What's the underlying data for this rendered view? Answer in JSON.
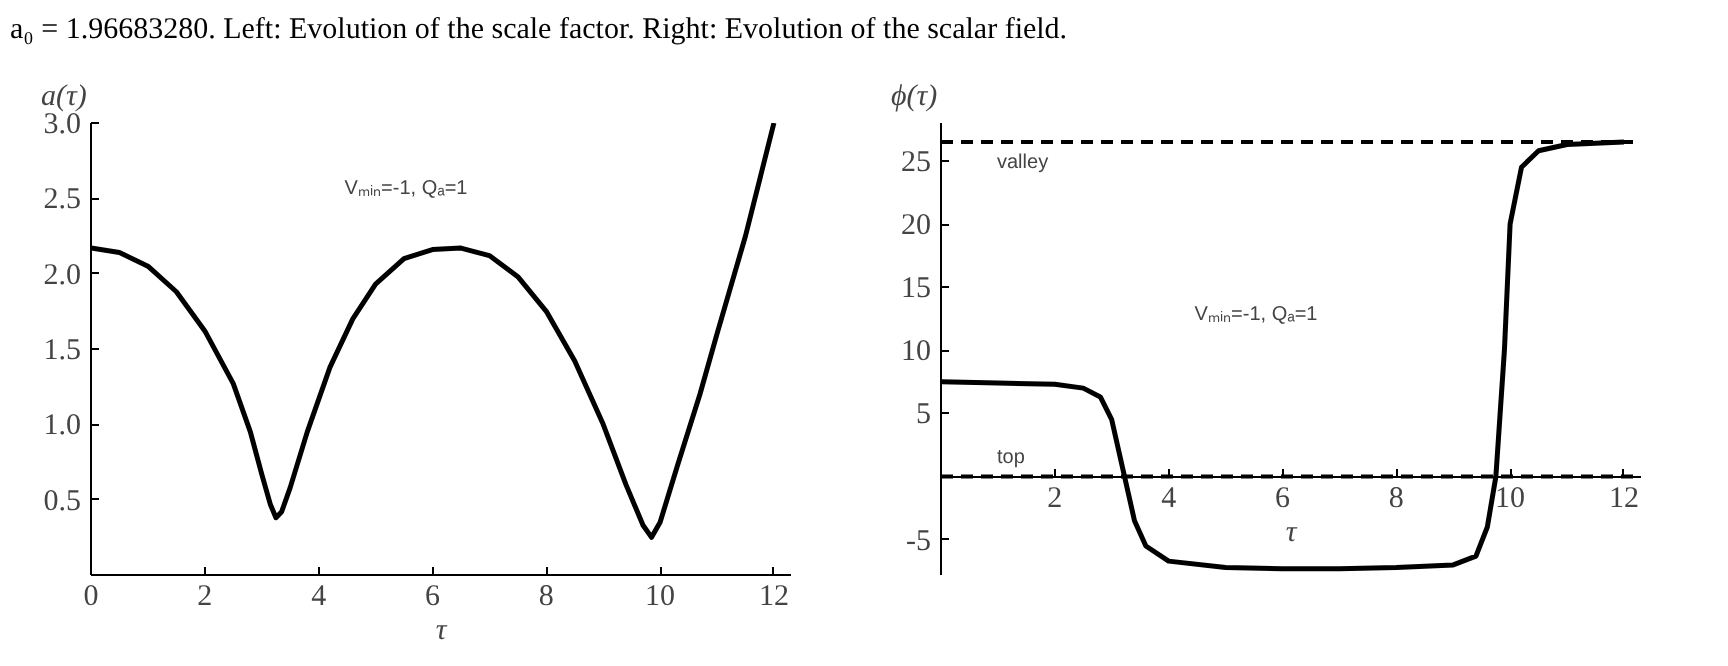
{
  "chart_data": [
    {
      "type": "line",
      "title": "a₀ = 1.96683280. Left: Evolution of the scale factor. Right: Evolution of the scalar field.",
      "xlabel": "τ",
      "ylabel": "a(τ)",
      "annotations": [
        "Vₘᵢₙ=-1, Qₐ=1"
      ],
      "grid": false,
      "line_style": "solid",
      "xlim": [
        0,
        12.3
      ],
      "ylim": [
        0,
        3.0
      ],
      "xticks": [
        0,
        2,
        4,
        6,
        8,
        10,
        12
      ],
      "yticks": [
        {
          "value": 0.5,
          "label": "0.5"
        },
        {
          "value": 1.0,
          "label": "1.0"
        },
        {
          "value": 1.5,
          "label": "1.5"
        },
        {
          "value": 2.0,
          "label": "2.0"
        },
        {
          "value": 2.5,
          "label": "2.5"
        },
        {
          "value": 3.0,
          "label": "3.0"
        }
      ],
      "series": [
        {
          "color": "#000000",
          "x": [
            0,
            0.5,
            1,
            1.5,
            2,
            2.5,
            2.8,
            3.0,
            3.15,
            3.25,
            3.35,
            3.5,
            3.8,
            4.2,
            4.6,
            5,
            5.5,
            6,
            6.5,
            7,
            7.5,
            8,
            8.5,
            9,
            9.4,
            9.7,
            9.85,
            10.0,
            10.3,
            10.7,
            11,
            11.5,
            12
          ],
          "values": [
            2.17,
            2.14,
            2.05,
            1.88,
            1.62,
            1.27,
            0.95,
            0.67,
            0.47,
            0.38,
            0.42,
            0.58,
            0.95,
            1.38,
            1.7,
            1.93,
            2.1,
            2.16,
            2.17,
            2.12,
            1.98,
            1.75,
            1.42,
            1.0,
            0.6,
            0.33,
            0.25,
            0.35,
            0.72,
            1.2,
            1.6,
            2.25,
            3.0
          ]
        }
      ]
    },
    {
      "type": "line",
      "xlabel": "τ",
      "ylabel": "ϕ(τ)",
      "annotations": [
        "Vₘᵢₙ=-1, Qₐ=1"
      ],
      "grid": false,
      "line_style": "solid",
      "xlim": [
        0,
        12.3
      ],
      "ylim": [
        -7.8,
        28
      ],
      "xticks": [
        2,
        4,
        6,
        8,
        10,
        12
      ],
      "yticks": [
        -5,
        5,
        10,
        15,
        20,
        25
      ],
      "ref_lines": [
        {
          "axis": "y",
          "value": 26.5,
          "label": "valley",
          "line_style": "dashed",
          "color": "#000000"
        },
        {
          "axis": "y",
          "value": 0,
          "label": "top",
          "line_style": "dashed",
          "color": "#000000"
        }
      ],
      "series": [
        {
          "color": "#000000",
          "x": [
            0,
            1,
            2,
            2.5,
            2.8,
            3.0,
            3.2,
            3.4,
            3.6,
            4.0,
            5,
            6,
            7,
            8,
            9,
            9.4,
            9.6,
            9.75,
            9.9,
            10.0,
            10.2,
            10.5,
            11,
            12
          ],
          "values": [
            7.5,
            7.4,
            7.3,
            7.0,
            6.3,
            4.5,
            0.5,
            -3.5,
            -5.5,
            -6.7,
            -7.2,
            -7.3,
            -7.3,
            -7.2,
            -7.0,
            -6.3,
            -4,
            0,
            10,
            20,
            24.5,
            25.8,
            26.3,
            26.5
          ]
        }
      ]
    }
  ]
}
